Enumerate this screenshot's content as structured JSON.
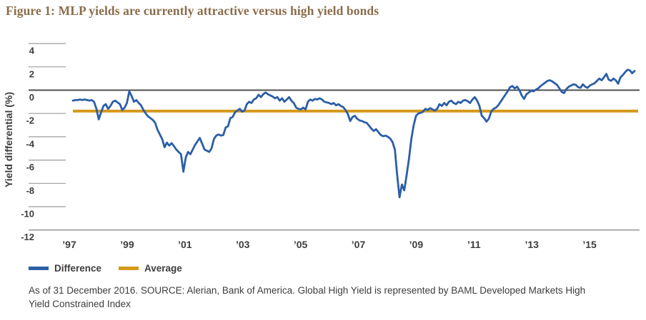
{
  "figure": {
    "title": "Figure 1: MLP yields are currently attractive versus high yield bonds"
  },
  "colors": {
    "title_text": "#8a6c4a",
    "difference_line": "#2b5ea7",
    "average_line": "#d5991c",
    "zero_line": "#4f4f4f",
    "axis_line": "#8c8c8c",
    "tick_line": "#9c9c9c",
    "label_text": "#3d3d3d"
  },
  "chart_data": {
    "type": "line",
    "ylabel": "Yield differential (%)",
    "ylim": [
      -12,
      4
    ],
    "yticks": [
      4,
      2,
      0,
      -2,
      -4,
      -6,
      -8,
      -10,
      -12
    ],
    "xtick_labels": [
      "’97",
      "’99",
      "’01",
      "’03",
      "’05",
      "’07",
      "’09",
      "’11",
      "’13",
      "’15"
    ],
    "x_period": "monthly, Jan 1997 - Dec 2016",
    "legend_position": "bottom-left",
    "grid": "left tick stubs; zero line and bottom axis full width",
    "series": [
      {
        "name": "Difference",
        "color": "#2b5ea7",
        "values": [
          -0.9,
          -0.85,
          -0.85,
          -0.8,
          -0.85,
          -0.8,
          -0.85,
          -0.9,
          -0.85,
          -1.0,
          -1.6,
          -2.5,
          -1.9,
          -1.35,
          -1.2,
          -1.6,
          -1.35,
          -1.0,
          -0.9,
          -1.05,
          -1.2,
          -1.7,
          -1.5,
          -1.1,
          -0.1,
          -0.5,
          -1.0,
          -0.85,
          -1.1,
          -1.3,
          -1.7,
          -2.0,
          -2.25,
          -2.4,
          -2.55,
          -2.8,
          -3.4,
          -3.8,
          -4.2,
          -4.9,
          -4.5,
          -4.75,
          -4.55,
          -4.8,
          -5.1,
          -5.3,
          -5.5,
          -7.0,
          -5.8,
          -5.3,
          -5.5,
          -5.1,
          -4.7,
          -4.4,
          -4.1,
          -4.6,
          -5.1,
          -5.2,
          -5.3,
          -5.0,
          -4.2,
          -3.9,
          -3.8,
          -3.9,
          -3.85,
          -3.2,
          -3.1,
          -2.4,
          -2.3,
          -1.9,
          -1.75,
          -1.6,
          -1.85,
          -1.75,
          -1.2,
          -1.0,
          -1.1,
          -0.8,
          -0.7,
          -0.4,
          -0.6,
          -0.35,
          -0.2,
          -0.35,
          -0.45,
          -0.55,
          -0.7,
          -0.6,
          -0.9,
          -0.7,
          -1.0,
          -0.8,
          -0.6,
          -0.9,
          -1.1,
          -1.5,
          -1.6,
          -1.65,
          -1.5,
          -1.65,
          -1.0,
          -0.8,
          -0.9,
          -0.75,
          -0.8,
          -0.7,
          -0.8,
          -1.0,
          -1.05,
          -1.1,
          -1.2,
          -1.1,
          -1.3,
          -1.2,
          -1.35,
          -1.45,
          -1.7,
          -2.05,
          -2.65,
          -2.3,
          -2.2,
          -2.45,
          -2.6,
          -2.65,
          -2.75,
          -2.8,
          -3.05,
          -3.3,
          -3.5,
          -3.35,
          -3.6,
          -3.85,
          -3.95,
          -3.9,
          -4.0,
          -4.15,
          -4.45,
          -5.1,
          -7.3,
          -9.2,
          -8.1,
          -8.6,
          -7.3,
          -5.9,
          -4.2,
          -3.0,
          -2.2,
          -2.0,
          -1.95,
          -1.85,
          -1.6,
          -1.7,
          -1.55,
          -1.65,
          -1.75,
          -1.6,
          -1.2,
          -1.35,
          -1.1,
          -1.3,
          -1.0,
          -0.9,
          -1.1,
          -1.2,
          -1.0,
          -1.1,
          -0.9,
          -0.85,
          -0.95,
          -1.1,
          -0.8,
          -0.6,
          -0.9,
          -1.35,
          -2.2,
          -2.4,
          -2.7,
          -2.45,
          -1.85,
          -1.6,
          -1.5,
          -1.3,
          -1.0,
          -0.7,
          -0.4,
          -0.1,
          0.25,
          0.35,
          0.15,
          0.3,
          0.0,
          -0.45,
          -0.75,
          -0.35,
          -0.2,
          -0.05,
          -0.1,
          0.05,
          0.15,
          0.35,
          0.5,
          0.65,
          0.8,
          0.85,
          0.75,
          0.6,
          0.45,
          0.15,
          -0.15,
          -0.25,
          0.1,
          0.3,
          0.4,
          0.5,
          0.45,
          0.25,
          0.2,
          0.5,
          0.3,
          0.2,
          0.4,
          0.5,
          0.6,
          0.8,
          1.0,
          0.85,
          1.1,
          1.4,
          0.9,
          0.8,
          1.0,
          0.85,
          0.55,
          1.1,
          1.3,
          1.55,
          1.75,
          1.7,
          1.45,
          1.65
        ]
      },
      {
        "name": "Average",
        "color": "#d5991c",
        "constant_value": -1.8
      }
    ]
  },
  "legend": {
    "items": [
      {
        "label": "Difference"
      },
      {
        "label": "Average"
      }
    ]
  },
  "footnote": "As of 31 December 2016. SOURCE: Alerian, Bank of America. Global High Yield is represented by BAML Developed Markets High Yield Constrained Index"
}
